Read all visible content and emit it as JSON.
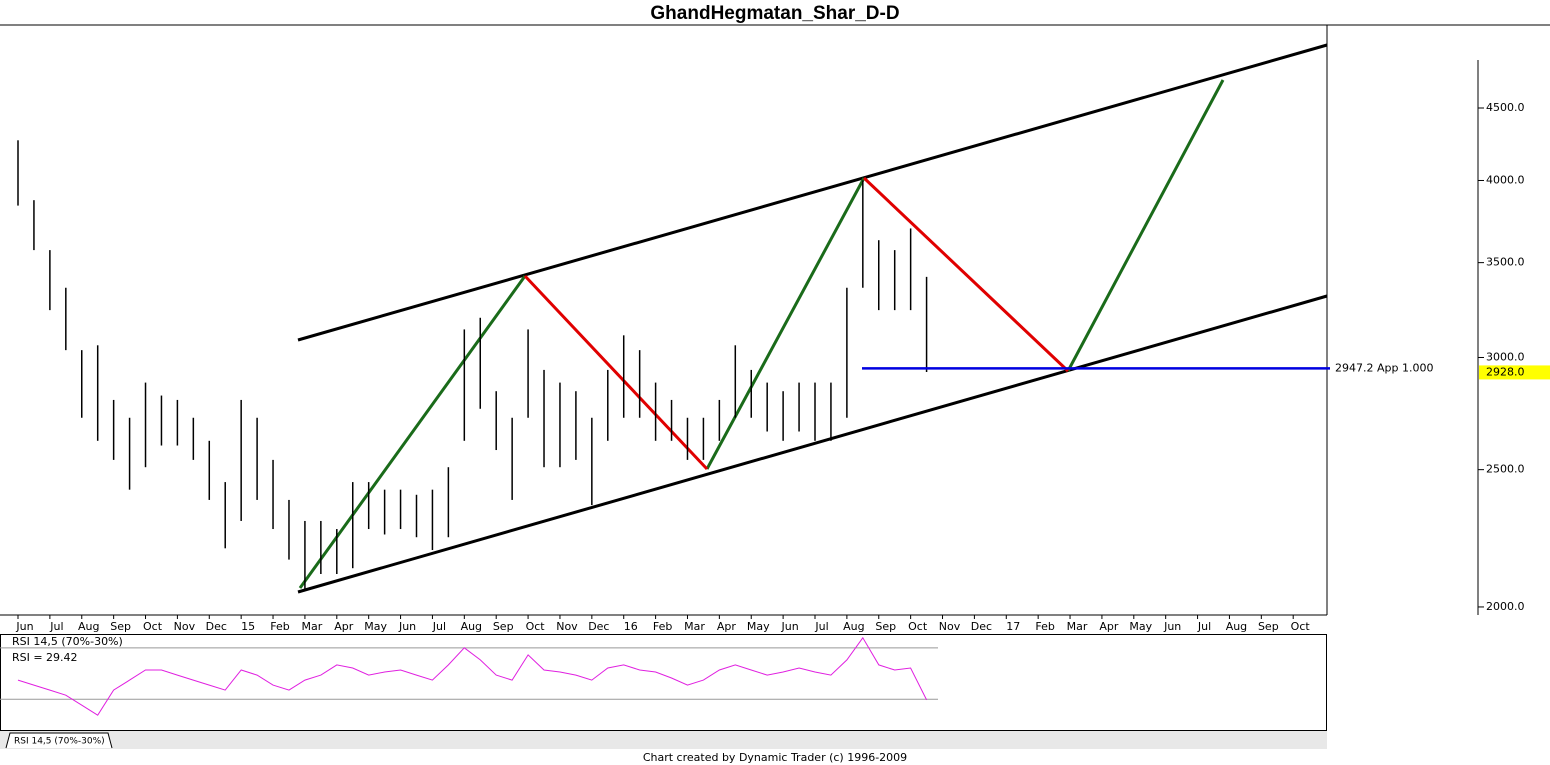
{
  "chart_data": {
    "type": "hlc",
    "title": "GhandHegmatan_Shar_D-D",
    "footer": "Chart created by Dynamic Trader  (c) 1996-2009",
    "categories": [
      "Jun",
      null,
      "Jul",
      null,
      "Aug",
      null,
      "Sep",
      null,
      "Oct",
      null,
      "Nov",
      null,
      "Dec",
      null,
      "15",
      null,
      "Feb",
      null,
      "Mar",
      null,
      "Apr",
      null,
      "May",
      null,
      "Jun",
      null,
      "Jul",
      null,
      "Aug",
      null,
      "Sep",
      null,
      "Oct",
      null,
      "Nov",
      null,
      "Dec",
      null,
      "16",
      null,
      "Feb",
      null,
      "Mar",
      null,
      "Apr",
      null,
      "May",
      null,
      "Jun",
      null,
      "Jul",
      null,
      "Aug",
      null,
      "Sep",
      null,
      "Oct",
      null,
      "Nov",
      null,
      "Dec",
      null,
      "17",
      null,
      "Feb",
      null,
      "Mar",
      null,
      "Apr",
      null,
      "May",
      null,
      "Jun",
      null,
      "Jul",
      null,
      "Aug",
      null,
      "Sep",
      null,
      "Oct",
      null
    ],
    "high": [
      4270,
      3874,
      3572,
      3360,
      3036,
      3060,
      2800,
      2720,
      2880,
      2820,
      2800,
      2720,
      2620,
      2450,
      2800,
      2720,
      2540,
      2380,
      2300,
      2300,
      2270,
      2450,
      2450,
      2420,
      2420,
      2400,
      2420,
      2510,
      3140,
      3200,
      2840,
      2720,
      3140,
      2940,
      2880,
      2840,
      2720,
      2940,
      3110,
      3036,
      2880,
      2800,
      2720,
      2720,
      2800,
      3060,
      2940,
      2880,
      2840,
      2880,
      2880,
      2880,
      3360,
      4000,
      3630,
      3572,
      3700,
      3420,
      null,
      null,
      null,
      null,
      null,
      null,
      null,
      null,
      null,
      null,
      null,
      null,
      null,
      null,
      null,
      null,
      null,
      null,
      null,
      null,
      null,
      null,
      null,
      null
    ],
    "low": [
      3840,
      3572,
      3240,
      3036,
      2720,
      2620,
      2540,
      2420,
      2510,
      2600,
      2600,
      2540,
      2380,
      2200,
      2300,
      2380,
      2270,
      2160,
      2056,
      2110,
      2110,
      2130,
      2270,
      2250,
      2270,
      2240,
      2194,
      2240,
      2620,
      2760,
      2581,
      2380,
      2720,
      2510,
      2510,
      2540,
      2360,
      2620,
      2720,
      2720,
      2620,
      2620,
      2540,
      2540,
      2620,
      2720,
      2720,
      2660,
      2620,
      2660,
      2620,
      2620,
      2720,
      3360,
      3240,
      3240,
      3240,
      2930,
      null,
      null,
      null,
      null,
      null,
      null,
      null,
      null,
      null,
      null,
      null,
      null,
      null,
      null,
      null,
      null,
      null,
      null,
      null,
      null,
      null,
      null,
      null,
      null
    ],
    "color": "#000000",
    "log_scale": true,
    "ylim": [
      1974,
      5150
    ],
    "yticks": [
      {
        "value": 2000,
        "label": "2000.0"
      },
      {
        "value": 2500,
        "label": "2500.0"
      },
      {
        "value": 3000,
        "label": "3000.0"
      },
      {
        "value": 3500,
        "label": "3500.0"
      },
      {
        "value": 4000,
        "label": "4000.0"
      },
      {
        "value": 4500,
        "label": "4500.0"
      }
    ],
    "projection": {
      "value": 2947.2,
      "label": "2947.2 App 1.000",
      "color": "#0000e0"
    },
    "last_price": {
      "value": 2928,
      "label": "2928.0",
      "color": "#ffff00"
    },
    "rsi": {
      "title": "RSI 14,5 (70%-30%)",
      "label": "RSI =",
      "color": "#e020e0",
      "ylim": [
        6,
        80
      ],
      "levels": [
        70,
        30
      ],
      "values": [
        44.9,
        41.0,
        37.1,
        33.1,
        25.3,
        17.5,
        37.1,
        44.9,
        52.7,
        52.7,
        48.8,
        44.9,
        41.0,
        37.1,
        52.7,
        48.8,
        41.0,
        37.1,
        44.9,
        48.8,
        56.7,
        54.3,
        48.8,
        51.2,
        52.7,
        48.8,
        44.9,
        56.7,
        70.0,
        60.6,
        48.8,
        44.9,
        64.5,
        52.7,
        51.2,
        48.8,
        44.9,
        54.3,
        56.7,
        52.7,
        51.2,
        46.5,
        41.0,
        44.9,
        52.7,
        56.7,
        52.7,
        48.8,
        51.2,
        54.3,
        51.2,
        48.8,
        60.6,
        77.8,
        56.7,
        52.7,
        54.3,
        29.42,
        null,
        null,
        null,
        null,
        null,
        null,
        null,
        null,
        null,
        null,
        null,
        null,
        null,
        null,
        null,
        null,
        null,
        null,
        null,
        null,
        null,
        null,
        null,
        null
      ]
    }
  }
}
